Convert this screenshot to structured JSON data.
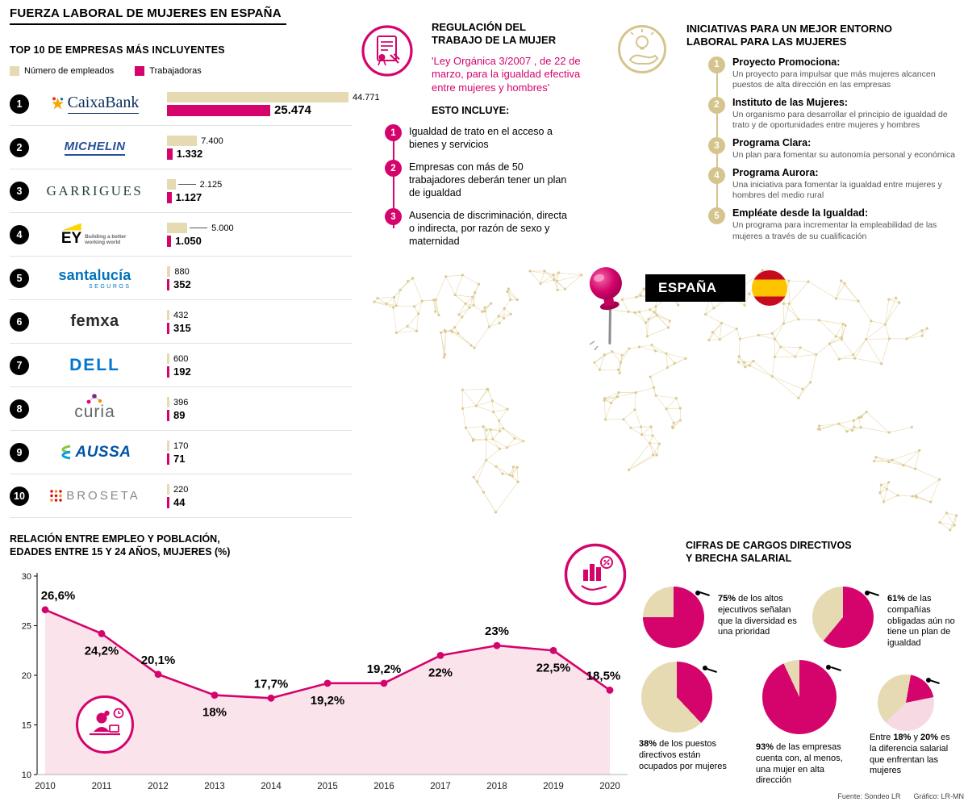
{
  "page": {
    "title": "FUERZA LABORAL DE MUJERES EN ESPAÑA",
    "footer": {
      "source": "Fuente: Sondeo LR",
      "credit": "Gráfico: LR-MN"
    }
  },
  "colors": {
    "pink": "#d4046c",
    "beige_bar": "#e6dab2",
    "beige_dark": "#d5c48d",
    "pale_pink": "#f7d9e3",
    "area_fill": "#fadee9",
    "map_beige": "#e7d9ad"
  },
  "top10": {
    "title": "TOP 10 DE EMPRESAS MÁS INCLUYENTES",
    "legend": [
      {
        "label": "Número de empleados",
        "color": "#e6dab2"
      },
      {
        "label": "Trabajadoras",
        "color": "#d4046c"
      }
    ],
    "companies": [
      {
        "rank": "1",
        "name": "CaixaBank",
        "logo": "caixabank",
        "logo_text": "CaixaBank",
        "employees_label": "44.771",
        "women_label": "25.474",
        "leader": false
      },
      {
        "rank": "2",
        "name": "Michelin",
        "logo": "michelin",
        "logo_text": "MICHELIN",
        "employees_label": "7.400",
        "women_label": "1.332",
        "leader": false
      },
      {
        "rank": "3",
        "name": "Garrigues",
        "logo": "garrigues",
        "logo_text": "GARRIGUES",
        "employees_label": "2.125",
        "women_label": "1.127",
        "leader": true
      },
      {
        "rank": "4",
        "name": "EY",
        "logo": "ey",
        "logo_text": "EY",
        "tagline": "Building a better working world",
        "employees_label": "5.000",
        "women_label": "1.050",
        "leader": true
      },
      {
        "rank": "5",
        "name": "Santalucía",
        "logo": "santalucia",
        "logo_text": "santalucía",
        "sub": "SEGUROS",
        "employees_label": "880",
        "women_label": "352",
        "leader": false
      },
      {
        "rank": "6",
        "name": "Femxa",
        "logo": "femxa",
        "logo_text": "femxa",
        "employees_label": "432",
        "women_label": "315",
        "leader": false
      },
      {
        "rank": "7",
        "name": "Dell",
        "logo": "dell",
        "logo_text": "DELL",
        "employees_label": "600",
        "women_label": "192",
        "leader": false
      },
      {
        "rank": "8",
        "name": "Curia",
        "logo": "curia",
        "logo_text": "curia",
        "employees_label": "396",
        "women_label": "89",
        "leader": false
      },
      {
        "rank": "9",
        "name": "Aussa",
        "logo": "aussa",
        "logo_text": "AUSSA",
        "employees_label": "170",
        "women_label": "71",
        "leader": false
      },
      {
        "rank": "10",
        "name": "Broseta",
        "logo": "broseta",
        "logo_text": "BROSETA",
        "employees_label": "220",
        "women_label": "44",
        "leader": false
      }
    ]
  },
  "regulation": {
    "title": "REGULACIÓN DEL TRABAJO DE LA MUJER",
    "law": "'Ley Orgánica 3/2007 , de 22 de marzo, para la igualdad efectiva entre mujeres y hombres'",
    "includes_label": "ESTO INCLUYE:",
    "items": [
      {
        "num": "1",
        "text": "Igualdad de trato en el acceso a bienes y servicios"
      },
      {
        "num": "2",
        "text": "Empresas con más de 50 trabajadores deberán tener un plan de igualdad"
      },
      {
        "num": "3",
        "text": "Ausencia de discriminación, directa o indirecta, por razón de sexo y maternidad"
      }
    ]
  },
  "initiatives": {
    "title": "INICIATIVAS PARA UN MEJOR ENTORNO LABORAL PARA LAS MUJERES",
    "items": [
      {
        "num": "1",
        "name": "Proyecto Promociona:",
        "desc": "Un proyecto para impulsar que más mujeres alcancen puestos de alta dirección en las empresas"
      },
      {
        "num": "2",
        "name": "Instituto de las Mujeres:",
        "desc": "Un organismo para desarrollar el principio de igualdad de trato y de oportunidades entre mujeres y hombres"
      },
      {
        "num": "3",
        "name": "Programa Clara:",
        "desc": "Un plan para fomentar su autonomía personal y económica"
      },
      {
        "num": "4",
        "name": "Programa Aurora:",
        "desc": "Una iniciativa para fomentar la igualdad entre mujeres y hombres del medio rural"
      },
      {
        "num": "5",
        "name": "Empléate desde la Igualdad:",
        "desc": "Un programa para incrementar la empleabilidad de las mujeres a través de su cualificación"
      }
    ]
  },
  "map": {
    "label": "ESPAÑA"
  },
  "stats": {
    "title_lines": [
      "CIFRAS DE CARGOS DIRECTIVOS",
      "Y BRECHA SALARIAL"
    ]
  },
  "chart_data": [
    {
      "type": "bar",
      "title": "TOP 10 DE EMPRESAS MÁS INCLUYENTES",
      "orientation": "horizontal",
      "categories": [
        "CaixaBank",
        "Michelin",
        "Garrigues",
        "EY",
        "Santalucía",
        "Femxa",
        "Dell",
        "Curia",
        "Aussa",
        "Broseta"
      ],
      "series": [
        {
          "name": "Número de empleados",
          "values": [
            44771,
            7400,
            2125,
            5000,
            880,
            432,
            600,
            396,
            170,
            220
          ]
        },
        {
          "name": "Trabajadoras",
          "values": [
            25474,
            1332,
            1127,
            1050,
            352,
            315,
            192,
            89,
            71,
            44
          ]
        }
      ],
      "max_value": 44771
    },
    {
      "type": "area",
      "title_lines": [
        "RELACIÓN ENTRE EMPLEO Y POBLACIÓN,",
        "EDADES ENTRE 15 Y 24 AÑOS, MUJERES (%)"
      ],
      "x": [
        2010,
        2011,
        2012,
        2013,
        2014,
        2015,
        2016,
        2017,
        2018,
        2019,
        2020
      ],
      "values": [
        26.6,
        24.2,
        20.1,
        18,
        17.7,
        19.2,
        19.2,
        22,
        23,
        22.5,
        18.5
      ],
      "point_labels": [
        "26,6%",
        "24,2%",
        "20,1%",
        "18%",
        "17,7%",
        "19,2%",
        "19,2%",
        "22%",
        "23%",
        "22,5%",
        "18,5%"
      ],
      "ylim": [
        10,
        30
      ],
      "yticks": [
        30,
        25,
        20,
        15,
        10
      ],
      "grid": false,
      "line_color": "#d4046c",
      "fill_color": "#fadee9"
    },
    {
      "type": "pie",
      "value": 75,
      "rotate_deg": 0,
      "slices": [
        {
          "color": "#d4046c",
          "pct": 75
        },
        {
          "color": "#e6dab2",
          "pct": 25
        }
      ],
      "text_segments": [
        {
          "t": "75%",
          "b": true
        },
        {
          "t": " de los altos ejecutivos señalan que la diversidad es una prioridad",
          "b": false
        }
      ]
    },
    {
      "type": "pie",
      "value": 61,
      "rotate_deg": 0,
      "slices": [
        {
          "color": "#d4046c",
          "pct": 61
        },
        {
          "color": "#e6dab2",
          "pct": 39
        }
      ],
      "text_segments": [
        {
          "t": "61%",
          "b": true
        },
        {
          "t": " de las compañías obligadas aún no tiene un plan de igualdad",
          "b": false
        }
      ]
    },
    {
      "type": "pie",
      "value": 38,
      "rotate_deg": 0,
      "slices": [
        {
          "color": "#d4046c",
          "pct": 38
        },
        {
          "color": "#e6dab2",
          "pct": 62
        }
      ],
      "text_segments": [
        {
          "t": "38%",
          "b": true
        },
        {
          "t": " de los puestos directivos están ocupados por mujeres",
          "b": false
        }
      ]
    },
    {
      "type": "pie",
      "value": 93,
      "rotate_deg": 0,
      "slices": [
        {
          "color": "#d4046c",
          "pct": 93
        },
        {
          "color": "#e6dab2",
          "pct": 7
        }
      ],
      "text_segments": [
        {
          "t": "93%",
          "b": true
        },
        {
          "t": " de las empresas cuenta con, al menos, una mujer en alta dirección",
          "b": false
        }
      ]
    },
    {
      "type": "pie",
      "value_range": [
        18,
        20
      ],
      "rotate_deg": 10,
      "slices": [
        {
          "color": "#d4046c",
          "pct": 19
        },
        {
          "color": "#f7d9e3",
          "pct": 41
        },
        {
          "color": "#e6dab2",
          "pct": 40
        }
      ],
      "text_segments": [
        {
          "t": "Entre ",
          "b": false
        },
        {
          "t": "18%",
          "b": true
        },
        {
          "t": " y ",
          "b": false
        },
        {
          "t": "20%",
          "b": true
        },
        {
          "t": " es la diferencia salarial que enfrentan las mujeres",
          "b": false
        }
      ]
    }
  ]
}
